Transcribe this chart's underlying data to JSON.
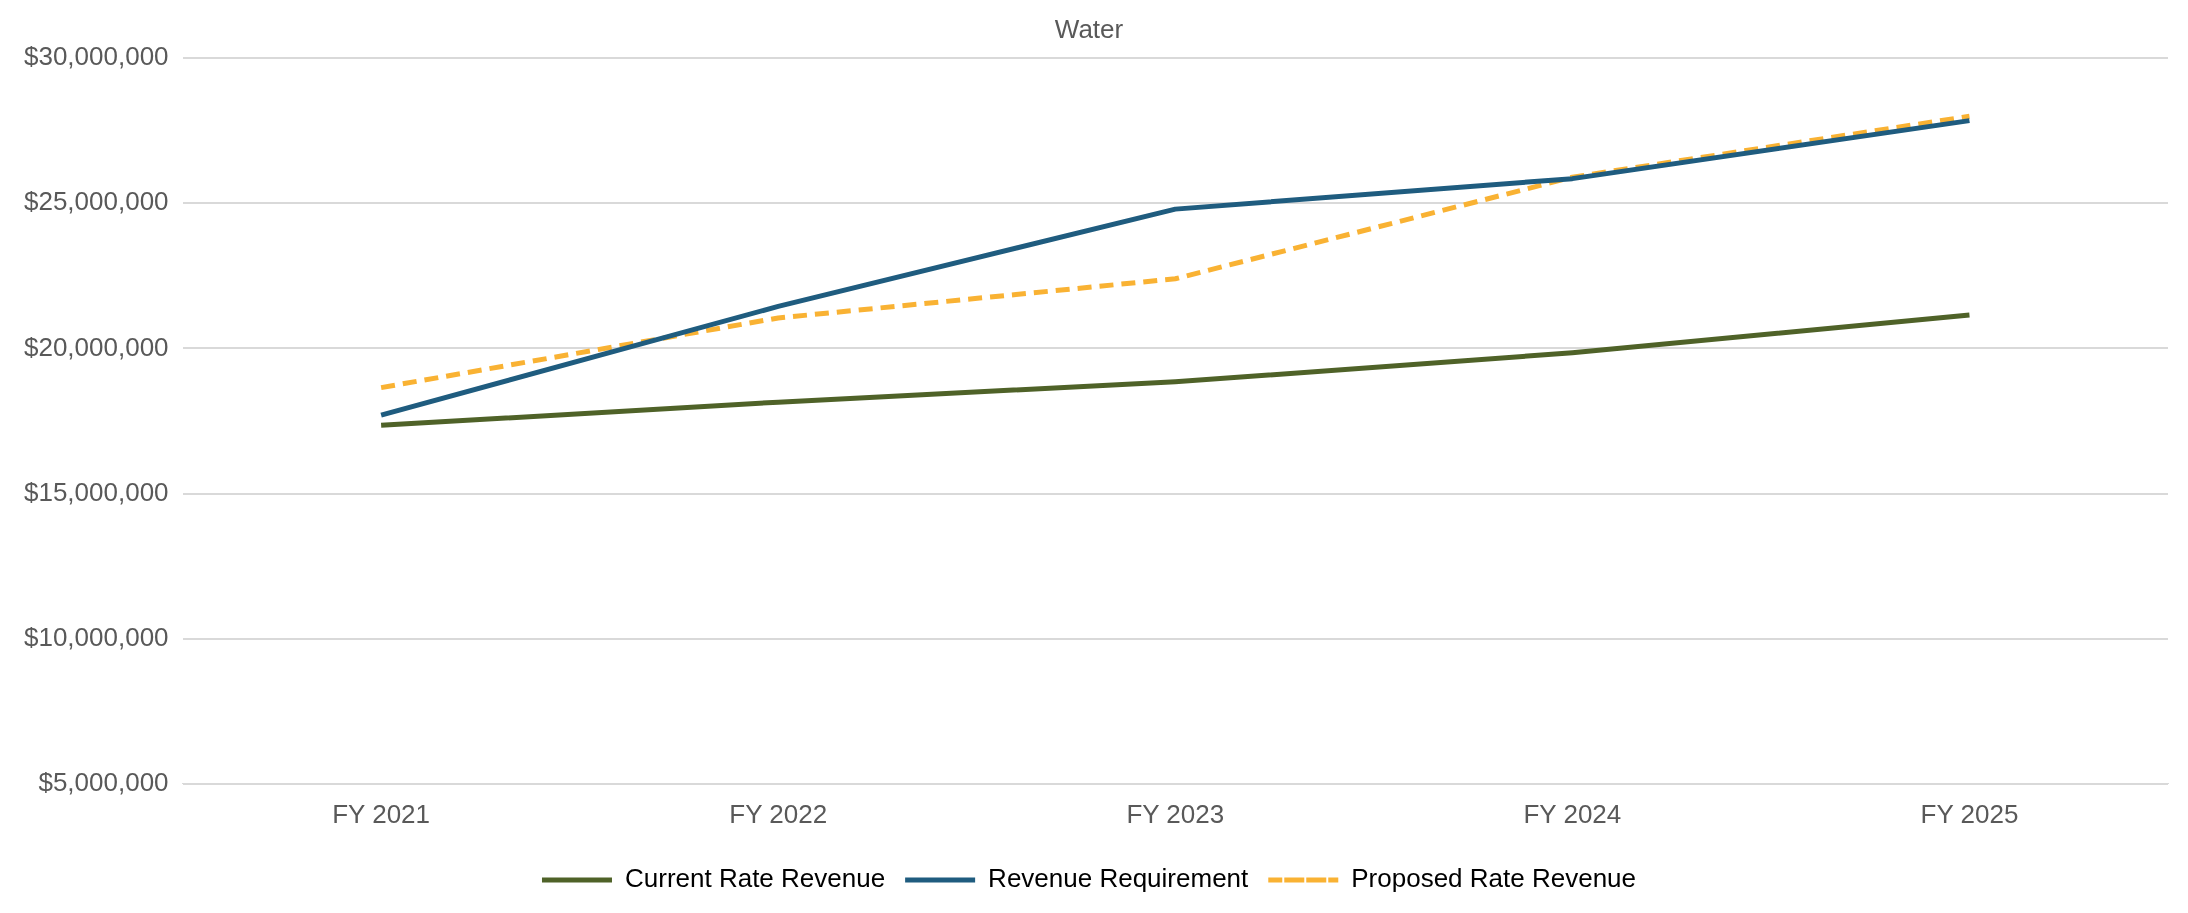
{
  "chart_data": {
    "type": "line",
    "title": "Water",
    "categories": [
      "FY 2021",
      "FY 2022",
      "FY 2023",
      "FY 2024",
      "FY 2025"
    ],
    "series": [
      {
        "name": "Current Rate Revenue",
        "color": "#4f6228",
        "values": [
          17350000,
          18150000,
          18850000,
          19850000,
          21150000
        ]
      },
      {
        "name": "Revenue Requirement",
        "color": "#1f5c7f",
        "values": [
          17700000,
          21450000,
          24800000,
          25850000,
          27850000
        ]
      },
      {
        "name": "Proposed Rate Revenue",
        "color": "#f9b233",
        "line_style": "dashed",
        "values": [
          18650000,
          21050000,
          22400000,
          25900000,
          28000000
        ]
      }
    ],
    "ylim": [
      5000000,
      30000000
    ],
    "yticks": [
      {
        "value": 5000000,
        "label": "$5,000,000"
      },
      {
        "value": 10000000,
        "label": "$10,000,000"
      },
      {
        "value": 15000000,
        "label": "$15,000,000"
      },
      {
        "value": 20000000,
        "label": "$20,000,000"
      },
      {
        "value": 25000000,
        "label": "$25,000,000"
      },
      {
        "value": 30000000,
        "label": "$30,000,000"
      }
    ],
    "grid": "y",
    "legend": "bottom",
    "marker": "none"
  }
}
